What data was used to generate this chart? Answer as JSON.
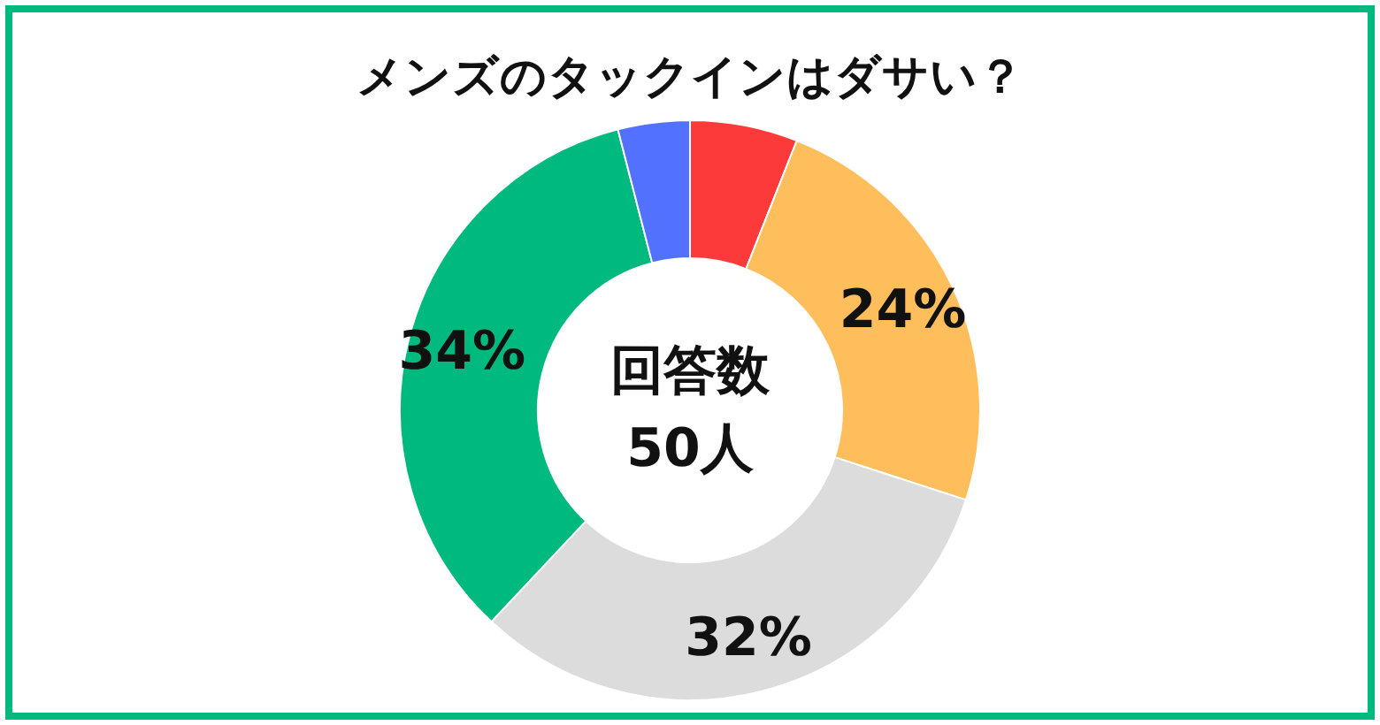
{
  "chart_data": {
    "type": "donut",
    "title": "メンズのタックインはダサい？",
    "categories": [
      null,
      null,
      null,
      null,
      null
    ],
    "values": [
      6,
      24,
      32,
      34,
      4
    ],
    "colors": [
      "#fc3a3a",
      "#ffbe5c",
      "#dcdcdc",
      "#00b97e",
      "#5271ff"
    ],
    "value_labels": [
      null,
      "24%",
      "32%",
      "34%",
      null
    ],
    "annotations": [
      "回答数",
      "50人"
    ]
  }
}
